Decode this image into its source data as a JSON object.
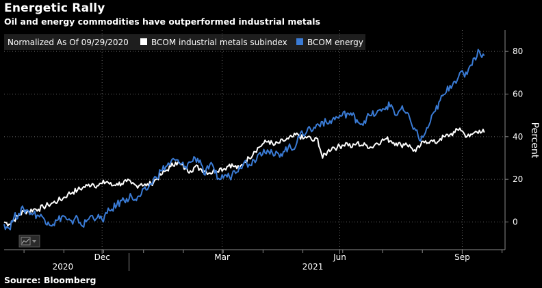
{
  "chart_data": {
    "type": "line",
    "title": "Energetic Rally",
    "subtitle": "Oil and energy commodities have outperformed industrial metals",
    "source": "Source: Bloomberg",
    "legend": {
      "header": "Normalized As Of 09/29/2020",
      "placement": "top-left"
    },
    "ylabel": "Percent",
    "ylim": [
      -13,
      90
    ],
    "yticks": [
      0,
      20,
      40,
      60,
      80
    ],
    "xlim": [
      0,
      100
    ],
    "month_ticks": [
      {
        "label": "Dec",
        "pos": 20
      },
      {
        "label": "Mar",
        "pos": 44.5
      },
      {
        "label": "Jun",
        "pos": 68.5
      },
      {
        "label": "Sep",
        "pos": 93.5
      }
    ],
    "year_labels": [
      {
        "label": "2020",
        "pos": 12
      },
      {
        "label": "2021",
        "pos": 63
      }
    ],
    "year_divider": 25.5,
    "series": [
      {
        "name": "BCOM industrial metals subindex",
        "color": "#ffffff",
        "x": [
          0,
          1,
          2,
          3,
          4,
          5,
          6,
          7,
          8,
          9,
          10,
          11,
          12,
          13,
          14,
          15,
          16,
          17,
          18,
          19,
          20,
          21,
          22,
          23,
          24,
          25,
          26,
          27,
          28,
          29,
          30,
          31,
          32,
          33,
          34,
          35,
          36,
          37,
          38,
          39,
          40,
          41,
          42,
          43,
          44,
          45,
          46,
          47,
          48,
          49,
          50,
          51,
          52,
          53,
          54,
          55,
          56,
          57,
          58,
          59,
          60,
          61,
          62,
          63,
          64,
          65,
          66,
          67,
          68,
          69,
          70,
          71,
          72,
          73,
          74,
          75,
          76,
          77,
          78,
          79,
          80,
          81,
          82,
          83,
          84,
          85,
          86,
          87,
          88,
          89,
          90,
          91,
          92,
          93,
          94,
          95,
          96,
          97,
          98
        ],
        "values": [
          0,
          -1,
          1,
          3,
          5,
          5,
          6,
          6,
          7,
          8,
          9,
          10,
          11,
          13,
          14,
          15,
          16,
          17,
          18,
          17,
          18,
          19,
          17,
          18,
          18,
          19,
          18,
          17,
          18,
          17,
          18,
          20,
          22,
          24,
          26,
          28,
          27,
          25,
          24,
          26,
          25,
          24,
          23,
          24,
          25,
          25,
          27,
          26,
          25,
          28,
          30,
          33,
          35,
          37,
          38,
          36,
          37,
          38,
          39,
          40,
          41,
          39,
          40,
          38,
          39,
          30,
          33,
          35,
          35,
          36,
          37,
          35,
          37,
          36,
          36,
          35,
          37,
          38,
          39,
          38,
          37,
          36,
          37,
          35,
          33,
          36,
          38,
          38,
          37,
          39,
          40,
          41,
          42,
          44,
          41,
          40,
          42,
          43,
          42
        ],
        "jitter": 1.4
      },
      {
        "name": "BCOM energy",
        "color": "#3a7bd5",
        "x": [
          0,
          1,
          2,
          3,
          4,
          5,
          6,
          7,
          8,
          9,
          10,
          11,
          12,
          13,
          14,
          15,
          16,
          17,
          18,
          19,
          20,
          21,
          22,
          23,
          24,
          25,
          26,
          27,
          28,
          29,
          30,
          31,
          32,
          33,
          34,
          35,
          36,
          37,
          38,
          39,
          40,
          41,
          42,
          43,
          44,
          45,
          46,
          47,
          48,
          49,
          50,
          51,
          52,
          53,
          54,
          55,
          56,
          57,
          58,
          59,
          60,
          61,
          62,
          63,
          64,
          65,
          66,
          67,
          68,
          69,
          70,
          71,
          72,
          73,
          74,
          75,
          76,
          77,
          78,
          79,
          80,
          81,
          82,
          83,
          84,
          85,
          86,
          87,
          88,
          89,
          90,
          91,
          92,
          93,
          94,
          95,
          96,
          97,
          98
        ],
        "values": [
          -1,
          -3,
          2,
          4,
          6,
          5,
          4,
          3,
          2,
          0,
          -1,
          1,
          3,
          1,
          -1,
          2,
          -2,
          1,
          3,
          2,
          1,
          4,
          6,
          8,
          10,
          11,
          12,
          10,
          13,
          15,
          18,
          21,
          24,
          26,
          28,
          29,
          27,
          26,
          28,
          30,
          29,
          22,
          27,
          23,
          20,
          22,
          21,
          24,
          26,
          28,
          27,
          29,
          32,
          34,
          33,
          31,
          32,
          33,
          35,
          34,
          40,
          41,
          44,
          43,
          46,
          47,
          46,
          48,
          49,
          50,
          51,
          50,
          48,
          46,
          49,
          50,
          51,
          52,
          54,
          55,
          50,
          53,
          51,
          47,
          43,
          38,
          42,
          47,
          52,
          57,
          60,
          64,
          66,
          70,
          68,
          73,
          77,
          80,
          78
        ],
        "jitter": 2.0
      }
    ]
  }
}
